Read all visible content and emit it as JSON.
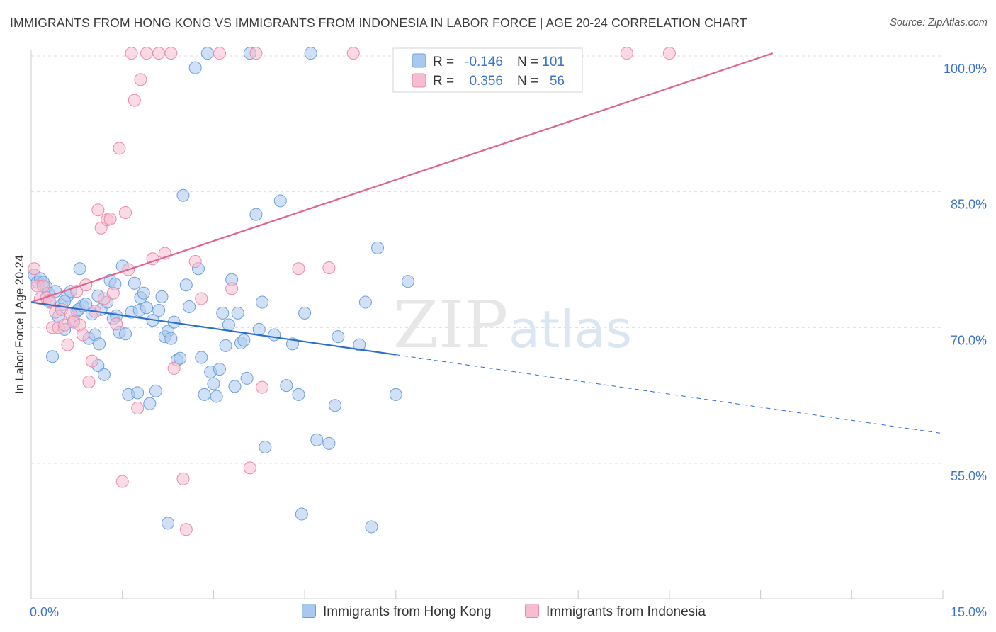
{
  "title": "IMMIGRANTS FROM HONG KONG VS IMMIGRANTS FROM INDONESIA IN LABOR FORCE | AGE 20-24 CORRELATION CHART",
  "source": "Source: ZipAtlas.com",
  "watermark": {
    "zip": "ZIP",
    "atlas": "atlas"
  },
  "legend_box": [
    {
      "r_label": "R =",
      "r_value": "-0.146",
      "n_label": "N =",
      "n_value": "101"
    },
    {
      "r_label": "R =",
      "r_value": "0.356",
      "n_label": "N =",
      "n_value": "56"
    }
  ],
  "colors": {
    "hk_fill": "#a9c8f0",
    "hk_stroke": "#6f9fdc",
    "hk_line": "#2a6fcc",
    "id_fill": "#f7bcd0",
    "id_stroke": "#e88aab",
    "id_line": "#e0648d",
    "value_text": "#3b73c9",
    "grid": "#dddddd"
  },
  "chart_data": {
    "type": "scatter",
    "title": "IMMIGRANTS FROM HONG KONG VS IMMIGRANTS FROM INDONESIA IN LABOR FORCE | AGE 20-24 CORRELATION CHART",
    "xlabel": "",
    "ylabel": "In Labor Force | Age 20-24",
    "xlim": [
      0,
      15
    ],
    "ylim": [
      40,
      101.5
    ],
    "x_tick_labels": [
      "0.0%",
      "15.0%"
    ],
    "y_ticks": [
      55,
      70,
      85,
      100
    ],
    "y_tick_labels": [
      "55.0%",
      "70.0%",
      "85.0%",
      "100.0%"
    ],
    "grid": true,
    "legend_position": "bottom",
    "series": [
      {
        "name": "Immigrants from Hong Kong",
        "R": -0.146,
        "N": 101,
        "trend": {
          "x1": 0,
          "y1": 72.8,
          "x2": 6.0,
          "y2": 67.0,
          "dash_to_x": 15.0,
          "dash_to_y": 58.3
        },
        "points": [
          [
            0.05,
            75.8
          ],
          [
            0.1,
            75.0
          ],
          [
            0.15,
            75.4
          ],
          [
            0.2,
            75.0
          ],
          [
            0.25,
            74.5
          ],
          [
            0.28,
            73.8
          ],
          [
            0.3,
            72.8
          ],
          [
            0.35,
            66.8
          ],
          [
            0.45,
            71.2
          ],
          [
            0.5,
            72.5
          ],
          [
            0.55,
            69.8
          ],
          [
            0.6,
            73.5
          ],
          [
            0.65,
            74.0
          ],
          [
            0.7,
            70.8
          ],
          [
            0.75,
            71.8
          ],
          [
            0.78,
            72.0
          ],
          [
            0.8,
            76.5
          ],
          [
            0.85,
            72.4
          ],
          [
            0.9,
            72.6
          ],
          [
            0.95,
            68.8
          ],
          [
            1.0,
            71.5
          ],
          [
            1.05,
            69.2
          ],
          [
            1.1,
            65.8
          ],
          [
            1.12,
            68.2
          ],
          [
            1.15,
            72.0
          ],
          [
            1.2,
            64.8
          ],
          [
            1.25,
            72.8
          ],
          [
            1.3,
            75.2
          ],
          [
            1.35,
            71.0
          ],
          [
            1.38,
            74.8
          ],
          [
            1.4,
            71.3
          ],
          [
            1.45,
            69.5
          ],
          [
            1.5,
            76.8
          ],
          [
            1.55,
            69.3
          ],
          [
            1.6,
            62.6
          ],
          [
            1.65,
            71.7
          ],
          [
            1.7,
            74.9
          ],
          [
            1.75,
            62.8
          ],
          [
            1.78,
            71.9
          ],
          [
            1.8,
            73.3
          ],
          [
            1.85,
            73.8
          ],
          [
            1.9,
            72.2
          ],
          [
            1.95,
            61.6
          ],
          [
            2.0,
            70.8
          ],
          [
            2.05,
            63.0
          ],
          [
            2.1,
            71.9
          ],
          [
            2.15,
            73.4
          ],
          [
            2.2,
            69.0
          ],
          [
            2.25,
            69.6
          ],
          [
            2.3,
            68.8
          ],
          [
            2.35,
            70.6
          ],
          [
            2.4,
            66.4
          ],
          [
            2.45,
            66.6
          ],
          [
            2.5,
            84.6
          ],
          [
            2.55,
            74.7
          ],
          [
            2.6,
            72.3
          ],
          [
            2.7,
            98.7
          ],
          [
            2.75,
            76.5
          ],
          [
            2.8,
            66.7
          ],
          [
            2.85,
            62.6
          ],
          [
            2.9,
            100.3
          ],
          [
            2.95,
            65.1
          ],
          [
            3.0,
            63.8
          ],
          [
            3.05,
            62.4
          ],
          [
            3.1,
            65.4
          ],
          [
            3.15,
            71.6
          ],
          [
            3.2,
            68.0
          ],
          [
            3.25,
            70.3
          ],
          [
            3.3,
            75.3
          ],
          [
            3.35,
            63.5
          ],
          [
            3.4,
            71.6
          ],
          [
            3.45,
            68.3
          ],
          [
            3.5,
            68.6
          ],
          [
            3.55,
            64.4
          ],
          [
            3.6,
            100.3
          ],
          [
            3.7,
            82.5
          ],
          [
            3.75,
            69.8
          ],
          [
            3.8,
            72.8
          ],
          [
            3.85,
            56.8
          ],
          [
            4.0,
            69.2
          ],
          [
            4.1,
            84.0
          ],
          [
            4.2,
            63.6
          ],
          [
            4.3,
            68.2
          ],
          [
            4.4,
            62.6
          ],
          [
            4.45,
            49.4
          ],
          [
            4.5,
            71.6
          ],
          [
            4.6,
            100.3
          ],
          [
            4.7,
            57.6
          ],
          [
            4.9,
            57.2
          ],
          [
            5.0,
            61.4
          ],
          [
            5.05,
            69.0
          ],
          [
            5.4,
            68.1
          ],
          [
            5.5,
            72.8
          ],
          [
            5.6,
            48.0
          ],
          [
            5.7,
            78.8
          ],
          [
            6.0,
            62.6
          ],
          [
            6.2,
            75.1
          ],
          [
            2.25,
            48.4
          ],
          [
            1.1,
            73.5
          ],
          [
            0.4,
            74.0
          ],
          [
            0.55,
            72.9
          ]
        ]
      },
      {
        "name": "Immigrants from Indonesia",
        "R": 0.356,
        "N": 56,
        "trend": {
          "x1": 0,
          "y1": 72.8,
          "x2": 12.2,
          "y2": 100.3
        },
        "points": [
          [
            0.05,
            76.5
          ],
          [
            0.1,
            74.6
          ],
          [
            0.15,
            73.2
          ],
          [
            0.2,
            74.6
          ],
          [
            0.25,
            73.3
          ],
          [
            0.3,
            73.0
          ],
          [
            0.35,
            70.0
          ],
          [
            0.4,
            71.7
          ],
          [
            0.45,
            70.0
          ],
          [
            0.5,
            72.0
          ],
          [
            0.55,
            70.3
          ],
          [
            0.6,
            68.1
          ],
          [
            0.65,
            71.5
          ],
          [
            0.7,
            70.6
          ],
          [
            0.75,
            74.0
          ],
          [
            0.8,
            70.3
          ],
          [
            0.85,
            69.2
          ],
          [
            0.9,
            74.7
          ],
          [
            0.95,
            64.0
          ],
          [
            1.0,
            66.3
          ],
          [
            1.05,
            71.8
          ],
          [
            1.1,
            83.0
          ],
          [
            1.15,
            81.0
          ],
          [
            1.2,
            73.2
          ],
          [
            1.25,
            81.9
          ],
          [
            1.3,
            82.0
          ],
          [
            1.35,
            73.8
          ],
          [
            1.4,
            70.4
          ],
          [
            1.45,
            89.8
          ],
          [
            1.5,
            53.0
          ],
          [
            1.55,
            82.7
          ],
          [
            1.6,
            76.4
          ],
          [
            1.65,
            100.3
          ],
          [
            1.7,
            95.1
          ],
          [
            1.75,
            61.1
          ],
          [
            1.8,
            97.4
          ],
          [
            1.9,
            100.3
          ],
          [
            2.0,
            77.6
          ],
          [
            2.1,
            100.3
          ],
          [
            2.2,
            78.2
          ],
          [
            2.3,
            100.3
          ],
          [
            2.35,
            65.5
          ],
          [
            2.5,
            53.3
          ],
          [
            2.55,
            47.7
          ],
          [
            2.7,
            77.3
          ],
          [
            2.8,
            73.2
          ],
          [
            3.1,
            100.3
          ],
          [
            3.3,
            74.3
          ],
          [
            3.6,
            54.5
          ],
          [
            3.7,
            100.3
          ],
          [
            3.8,
            63.4
          ],
          [
            4.4,
            76.5
          ],
          [
            4.9,
            76.6
          ],
          [
            5.3,
            100.3
          ],
          [
            9.8,
            100.3
          ],
          [
            10.5,
            100.3
          ]
        ]
      }
    ]
  }
}
